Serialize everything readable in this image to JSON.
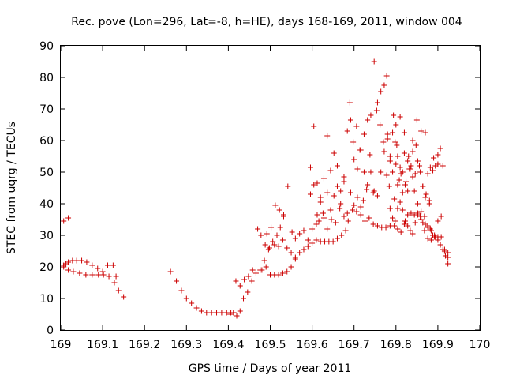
{
  "chart_data": {
    "type": "scatter",
    "title": "Rec. pove (Lon=296, Lat=-8, h=HE), days 168-169, 2011, window 004",
    "xlabel": "GPS time / Days of year 2011",
    "ylabel": "STEC from uqrg / TECUs",
    "xlim": [
      169,
      170
    ],
    "ylim": [
      0,
      90
    ],
    "x_ticks": [
      "169",
      "169.1",
      "169.2",
      "169.3",
      "169.4",
      "169.5",
      "169.6",
      "169.7",
      "169.8",
      "169.9",
      "170"
    ],
    "y_ticks": [
      "0",
      "10",
      "20",
      "30",
      "40",
      "50",
      "60",
      "70",
      "80",
      "90"
    ],
    "grid": false,
    "marker": "+",
    "color": "#cc0000",
    "series": [
      {
        "points": [
          [
            169.007,
            34.5
          ],
          [
            169.018,
            35.5
          ],
          [
            169.007,
            20.5
          ],
          [
            169.012,
            21.0
          ],
          [
            169.018,
            21.5
          ],
          [
            169.028,
            22.0
          ],
          [
            169.038,
            22.0
          ],
          [
            169.05,
            22.0
          ],
          [
            169.062,
            21.5
          ],
          [
            169.075,
            20.5
          ],
          [
            169.088,
            19.5
          ],
          [
            169.1,
            18.5
          ],
          [
            169.112,
            20.5
          ],
          [
            169.125,
            20.5
          ],
          [
            169.132,
            17.0
          ],
          [
            169.007,
            20.0
          ],
          [
            169.018,
            19.0
          ],
          [
            169.03,
            18.5
          ],
          [
            169.045,
            18.0
          ],
          [
            169.06,
            17.5
          ],
          [
            169.075,
            17.5
          ],
          [
            169.09,
            17.5
          ],
          [
            169.102,
            17.5
          ],
          [
            169.115,
            17.0
          ],
          [
            169.128,
            15.0
          ],
          [
            169.138,
            12.5
          ],
          [
            169.15,
            10.5
          ],
          [
            169.262,
            18.5
          ],
          [
            169.276,
            15.5
          ],
          [
            169.288,
            12.5
          ],
          [
            169.3,
            10.0
          ],
          [
            169.312,
            8.5
          ],
          [
            169.324,
            7.0
          ],
          [
            169.336,
            6.0
          ],
          [
            169.348,
            5.5
          ],
          [
            169.36,
            5.5
          ],
          [
            169.372,
            5.5
          ],
          [
            169.384,
            5.5
          ],
          [
            169.396,
            5.5
          ],
          [
            169.406,
            5.5
          ],
          [
            169.413,
            5.5
          ],
          [
            169.404,
            5.0
          ],
          [
            169.412,
            5.5
          ],
          [
            169.42,
            4.5
          ],
          [
            169.428,
            6.0
          ],
          [
            169.436,
            10.0
          ],
          [
            169.446,
            12.0
          ],
          [
            169.456,
            15.5
          ],
          [
            169.466,
            18.0
          ],
          [
            169.476,
            19.0
          ],
          [
            169.486,
            22.0
          ],
          [
            169.496,
            25.5
          ],
          [
            169.506,
            28.0
          ],
          [
            169.516,
            30.0
          ],
          [
            169.524,
            32.5
          ],
          [
            169.532,
            36.5
          ],
          [
            169.418,
            15.5
          ],
          [
            169.428,
            14.0
          ],
          [
            169.438,
            16.0
          ],
          [
            169.448,
            17.0
          ],
          [
            169.458,
            19.0
          ],
          [
            169.47,
            32.0
          ],
          [
            169.478,
            30.0
          ],
          [
            169.488,
            27.0
          ],
          [
            169.498,
            26.0
          ],
          [
            169.51,
            27.0
          ],
          [
            169.52,
            26.5
          ],
          [
            169.53,
            28.5
          ],
          [
            169.54,
            26.0
          ],
          [
            169.55,
            24.5
          ],
          [
            169.56,
            23.0
          ],
          [
            169.492,
            30.5
          ],
          [
            169.502,
            32.5
          ],
          [
            169.512,
            39.5
          ],
          [
            169.522,
            38.0
          ],
          [
            169.532,
            36.0
          ],
          [
            169.542,
            45.5
          ],
          [
            169.552,
            31.0
          ],
          [
            169.48,
            19.0
          ],
          [
            169.49,
            20.0
          ],
          [
            169.5,
            17.5
          ],
          [
            169.51,
            17.5
          ],
          [
            169.52,
            17.5
          ],
          [
            169.53,
            18.0
          ],
          [
            169.54,
            18.5
          ],
          [
            169.55,
            20.0
          ],
          [
            169.56,
            22.5
          ],
          [
            169.57,
            24.5
          ],
          [
            169.58,
            25.5
          ],
          [
            169.59,
            26.5
          ],
          [
            169.6,
            27.5
          ],
          [
            169.61,
            28.5
          ],
          [
            169.56,
            29.0
          ],
          [
            169.57,
            30.5
          ],
          [
            169.58,
            31.5
          ],
          [
            169.59,
            28.5
          ],
          [
            169.6,
            32.0
          ],
          [
            169.61,
            33.5
          ],
          [
            169.62,
            28.0
          ],
          [
            169.63,
            28.0
          ],
          [
            169.64,
            28.0
          ],
          [
            169.65,
            28.0
          ],
          [
            169.66,
            29.0
          ],
          [
            169.67,
            30.0
          ],
          [
            169.68,
            31.5
          ],
          [
            169.596,
            51.5
          ],
          [
            169.604,
            64.5
          ],
          [
            169.612,
            46.5
          ],
          [
            169.62,
            42.0
          ],
          [
            169.628,
            48.0
          ],
          [
            169.636,
            61.5
          ],
          [
            169.644,
            50.5
          ],
          [
            169.652,
            56.0
          ],
          [
            169.66,
            52.0
          ],
          [
            169.668,
            44.0
          ],
          [
            169.676,
            48.5
          ],
          [
            169.684,
            63.0
          ],
          [
            169.692,
            66.5
          ],
          [
            169.7,
            54.0
          ],
          [
            169.708,
            51.0
          ],
          [
            169.716,
            57.0
          ],
          [
            169.724,
            62.0
          ],
          [
            169.732,
            66.5
          ],
          [
            169.74,
            68.0
          ],
          [
            169.748,
            85.0
          ],
          [
            169.756,
            72.0
          ],
          [
            169.764,
            75.5
          ],
          [
            169.772,
            77.5
          ],
          [
            169.778,
            80.5
          ],
          [
            169.596,
            43.0
          ],
          [
            169.604,
            46.0
          ],
          [
            169.612,
            36.5
          ],
          [
            169.62,
            40.5
          ],
          [
            169.628,
            35.5
          ],
          [
            169.636,
            43.5
          ],
          [
            169.644,
            38.0
          ],
          [
            169.652,
            42.5
          ],
          [
            169.66,
            45.5
          ],
          [
            169.668,
            40.0
          ],
          [
            169.676,
            47.0
          ],
          [
            169.684,
            37.0
          ],
          [
            169.692,
            43.5
          ],
          [
            169.7,
            39.5
          ],
          [
            169.708,
            42.0
          ],
          [
            169.716,
            39.0
          ],
          [
            169.724,
            50.0
          ],
          [
            169.732,
            46.0
          ],
          [
            169.74,
            50.0
          ],
          [
            169.748,
            44.0
          ],
          [
            169.756,
            42.5
          ],
          [
            169.764,
            50.0
          ],
          [
            169.772,
            56.5
          ],
          [
            169.78,
            60.5
          ],
          [
            169.616,
            34.5
          ],
          [
            169.626,
            37.0
          ],
          [
            169.636,
            32.0
          ],
          [
            169.646,
            35.0
          ],
          [
            169.656,
            34.0
          ],
          [
            169.666,
            38.5
          ],
          [
            169.676,
            36.0
          ],
          [
            169.686,
            34.5
          ],
          [
            169.696,
            38.0
          ],
          [
            169.706,
            37.5
          ],
          [
            169.716,
            36.5
          ],
          [
            169.726,
            34.5
          ],
          [
            169.736,
            35.5
          ],
          [
            169.746,
            33.5
          ],
          [
            169.756,
            33.0
          ],
          [
            169.766,
            32.5
          ],
          [
            169.776,
            32.5
          ],
          [
            169.786,
            33.0
          ],
          [
            169.69,
            72.0
          ],
          [
            169.698,
            59.5
          ],
          [
            169.706,
            64.5
          ],
          [
            169.714,
            57.0
          ],
          [
            169.722,
            41.0
          ],
          [
            169.73,
            44.5
          ],
          [
            169.738,
            55.5
          ],
          [
            169.746,
            43.5
          ],
          [
            169.754,
            69.5
          ],
          [
            169.762,
            65.0
          ],
          [
            169.77,
            59.5
          ],
          [
            169.778,
            49.0
          ],
          [
            169.786,
            53.5
          ],
          [
            169.794,
            68.0
          ],
          [
            169.802,
            58.5
          ],
          [
            169.78,
            62.0
          ],
          [
            169.786,
            55.0
          ],
          [
            169.792,
            62.5
          ],
          [
            169.798,
            59.5
          ],
          [
            169.804,
            55.0
          ],
          [
            169.81,
            51.5
          ],
          [
            169.816,
            50.0
          ],
          [
            169.822,
            46.0
          ],
          [
            169.828,
            44.0
          ],
          [
            169.834,
            51.0
          ],
          [
            169.84,
            48.5
          ],
          [
            169.846,
            49.5
          ],
          [
            169.852,
            53.5
          ],
          [
            169.858,
            50.0
          ],
          [
            169.864,
            45.5
          ],
          [
            169.87,
            42.0
          ],
          [
            169.876,
            49.5
          ],
          [
            169.882,
            51.5
          ],
          [
            169.888,
            50.5
          ],
          [
            169.894,
            52.0
          ],
          [
            169.9,
            55.5
          ],
          [
            169.906,
            57.5
          ],
          [
            169.912,
            52.0
          ],
          [
            169.786,
            38.5
          ],
          [
            169.792,
            35.5
          ],
          [
            169.798,
            34.5
          ],
          [
            169.804,
            38.5
          ],
          [
            169.81,
            40.5
          ],
          [
            169.816,
            38.0
          ],
          [
            169.822,
            34.5
          ],
          [
            169.828,
            33.0
          ],
          [
            169.834,
            31.5
          ],
          [
            169.84,
            30.5
          ],
          [
            169.846,
            34.0
          ],
          [
            169.852,
            37.0
          ],
          [
            169.858,
            36.0
          ],
          [
            169.864,
            34.0
          ],
          [
            169.87,
            33.5
          ],
          [
            169.876,
            32.5
          ],
          [
            169.882,
            32.0
          ],
          [
            169.888,
            30.0
          ],
          [
            169.894,
            29.5
          ],
          [
            169.9,
            28.5
          ],
          [
            169.906,
            27.0
          ],
          [
            169.912,
            25.5
          ],
          [
            169.918,
            23.5
          ],
          [
            169.924,
            21.0
          ],
          [
            169.796,
            41.5
          ],
          [
            169.804,
            46.0
          ],
          [
            169.812,
            49.5
          ],
          [
            169.82,
            56.0
          ],
          [
            169.828,
            53.5
          ],
          [
            169.836,
            52.0
          ],
          [
            169.844,
            44.0
          ],
          [
            169.852,
            40.0
          ],
          [
            169.86,
            37.5
          ],
          [
            169.868,
            36.0
          ],
          [
            169.876,
            33.0
          ],
          [
            169.884,
            31.5
          ],
          [
            169.892,
            30.0
          ],
          [
            169.9,
            29.5
          ],
          [
            169.908,
            29.5
          ],
          [
            169.916,
            25.0
          ],
          [
            169.924,
            24.5
          ],
          [
            169.796,
            33.0
          ],
          [
            169.804,
            32.0
          ],
          [
            169.812,
            31.0
          ],
          [
            169.82,
            33.5
          ],
          [
            169.828,
            36.5
          ],
          [
            169.836,
            37.0
          ],
          [
            169.844,
            36.5
          ],
          [
            169.852,
            36.5
          ],
          [
            169.86,
            35.0
          ],
          [
            169.868,
            31.5
          ],
          [
            169.876,
            29.0
          ],
          [
            169.884,
            28.5
          ],
          [
            169.892,
            29.5
          ],
          [
            169.9,
            34.5
          ],
          [
            169.908,
            36.0
          ],
          [
            169.916,
            25.5
          ],
          [
            169.924,
            23.0
          ],
          [
            169.8,
            65.0
          ],
          [
            169.81,
            67.5
          ],
          [
            169.82,
            62.5
          ],
          [
            169.83,
            55.0
          ],
          [
            169.84,
            60.0
          ],
          [
            169.85,
            66.5
          ],
          [
            169.86,
            63.0
          ],
          [
            169.87,
            62.5
          ],
          [
            169.88,
            40.0
          ],
          [
            169.89,
            54.5
          ],
          [
            169.9,
            52.5
          ],
          [
            169.784,
            45.5
          ],
          [
            169.792,
            50.0
          ],
          [
            169.8,
            52.5
          ],
          [
            169.808,
            47.5
          ],
          [
            169.816,
            43.5
          ],
          [
            169.824,
            47.0
          ],
          [
            169.832,
            51.0
          ],
          [
            169.84,
            56.5
          ],
          [
            169.848,
            58.5
          ],
          [
            169.856,
            52.0
          ],
          [
            169.864,
            45.5
          ],
          [
            169.872,
            43.0
          ],
          [
            169.88,
            41.0
          ]
        ]
      }
    ]
  }
}
